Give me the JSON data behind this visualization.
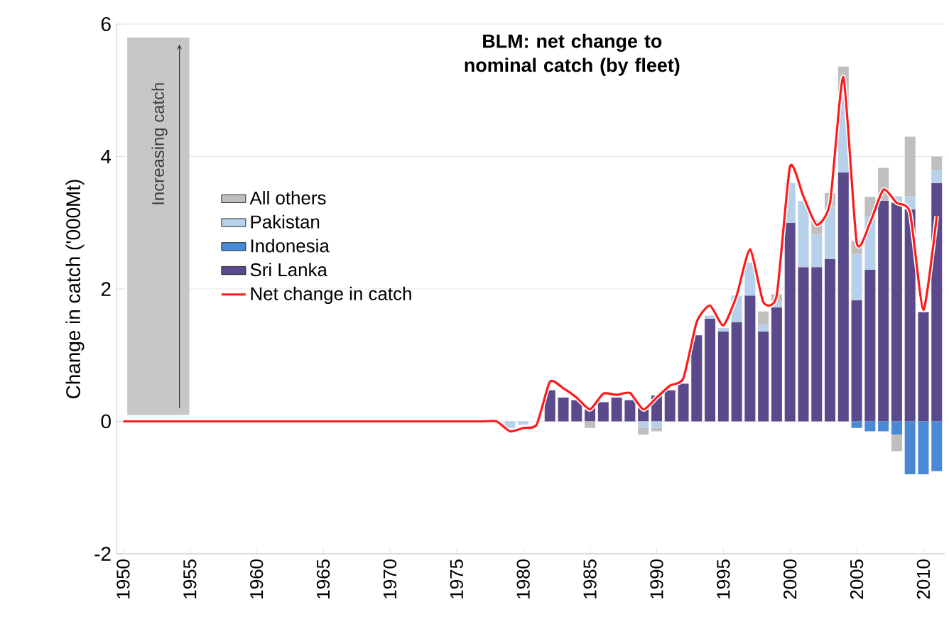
{
  "chart_data": {
    "type": "bar",
    "stacked": true,
    "title": "BLM: net change to nominal catch (by fleet)",
    "ylabel": "Change in catch ('000Mt)",
    "annotations": [
      "Increasing catch"
    ],
    "x": [
      1950,
      1951,
      1952,
      1953,
      1954,
      1955,
      1956,
      1957,
      1958,
      1959,
      1960,
      1961,
      1962,
      1963,
      1964,
      1965,
      1966,
      1967,
      1968,
      1969,
      1970,
      1971,
      1972,
      1973,
      1974,
      1975,
      1976,
      1977,
      1978,
      1979,
      1980,
      1981,
      1982,
      1983,
      1984,
      1985,
      1986,
      1987,
      1988,
      1989,
      1990,
      1991,
      1992,
      1993,
      1994,
      1995,
      1996,
      1997,
      1998,
      1999,
      2000,
      2001,
      2002,
      2003,
      2004,
      2005,
      2006,
      2007,
      2008,
      2009,
      2010,
      2011
    ],
    "xlim": [
      1949.5,
      2011.6
    ],
    "xticks": [
      1950,
      1955,
      1960,
      1965,
      1970,
      1975,
      1980,
      1985,
      1990,
      1995,
      2000,
      2005,
      2010
    ],
    "ylim": [
      -2,
      6
    ],
    "yticks": [
      -2,
      0,
      2,
      4,
      6
    ],
    "grid": "y",
    "legend": "left",
    "series": [
      {
        "name": "Sri Lanka",
        "color": "#5b4a8b",
        "values": [
          null,
          null,
          null,
          null,
          null,
          null,
          null,
          null,
          null,
          null,
          null,
          null,
          null,
          null,
          null,
          null,
          null,
          null,
          null,
          null,
          null,
          null,
          null,
          null,
          null,
          null,
          null,
          null,
          null,
          null,
          null,
          null,
          0.47,
          0.36,
          0.32,
          0.21,
          0.29,
          0.36,
          0.32,
          0.21,
          0.39,
          0.47,
          0.57,
          1.3,
          1.55,
          1.36,
          1.5,
          1.9,
          1.36,
          1.72,
          3.0,
          2.33,
          2.33,
          2.45,
          3.76,
          1.83,
          2.29,
          3.33,
          3.3,
          3.2,
          1.65,
          3.6
        ]
      },
      {
        "name": "Indonesia",
        "color": "#4a89d6",
        "values": [
          null,
          null,
          null,
          null,
          null,
          null,
          null,
          null,
          null,
          null,
          null,
          null,
          null,
          null,
          null,
          null,
          null,
          null,
          null,
          null,
          null,
          null,
          null,
          null,
          null,
          null,
          null,
          null,
          null,
          null,
          null,
          null,
          null,
          null,
          null,
          null,
          null,
          null,
          null,
          null,
          null,
          null,
          null,
          null,
          null,
          null,
          null,
          null,
          null,
          null,
          null,
          null,
          null,
          null,
          null,
          -0.1,
          -0.15,
          -0.15,
          -0.2,
          -0.8,
          -0.8,
          -0.75
        ]
      },
      {
        "name": "Pakistan",
        "color": "#b7d1ea",
        "values": [
          null,
          null,
          null,
          null,
          null,
          null,
          null,
          null,
          null,
          null,
          null,
          null,
          null,
          null,
          null,
          null,
          null,
          null,
          null,
          null,
          null,
          null,
          null,
          null,
          null,
          null,
          null,
          null,
          null,
          -0.1,
          -0.05,
          null,
          null,
          null,
          null,
          null,
          null,
          null,
          null,
          -0.1,
          -0.1,
          null,
          null,
          null,
          0.05,
          0.05,
          0.4,
          0.5,
          0.1,
          0.1,
          0.6,
          1.0,
          0.5,
          0.8,
          1.2,
          0.7,
          0.8,
          null,
          0.1,
          0.2,
          null,
          0.2
        ]
      },
      {
        "name": "All others",
        "color": "#bfbfbf",
        "values": [
          null,
          null,
          null,
          null,
          null,
          null,
          null,
          null,
          null,
          null,
          null,
          null,
          null,
          null,
          null,
          null,
          null,
          null,
          null,
          null,
          null,
          null,
          null,
          null,
          null,
          null,
          null,
          null,
          null,
          null,
          null,
          null,
          null,
          null,
          null,
          -0.1,
          null,
          null,
          null,
          -0.1,
          -0.05,
          null,
          null,
          null,
          null,
          null,
          null,
          null,
          0.2,
          0.1,
          null,
          null,
          0.2,
          0.2,
          0.4,
          0.2,
          0.3,
          0.5,
          -0.25,
          0.9,
          null,
          0.2
        ]
      },
      {
        "name": "Net change in catch",
        "type": "line",
        "color": "#ff1a1a",
        "values": [
          0,
          0,
          0,
          0,
          0,
          0,
          0,
          0,
          0,
          0,
          0,
          0,
          0,
          0,
          0,
          0,
          0,
          0,
          0,
          0,
          0,
          0,
          0,
          0,
          0,
          0,
          0,
          0,
          0,
          -0.15,
          -0.1,
          -0.05,
          0.6,
          0.5,
          0.36,
          0.18,
          0.42,
          0.4,
          0.43,
          0.18,
          0.36,
          0.54,
          0.65,
          1.5,
          1.75,
          1.45,
          1.9,
          2.6,
          1.8,
          1.9,
          3.85,
          3.4,
          2.97,
          3.3,
          5.2,
          2.7,
          3.0,
          3.5,
          3.3,
          3.15,
          1.68,
          3.1
        ]
      }
    ]
  }
}
